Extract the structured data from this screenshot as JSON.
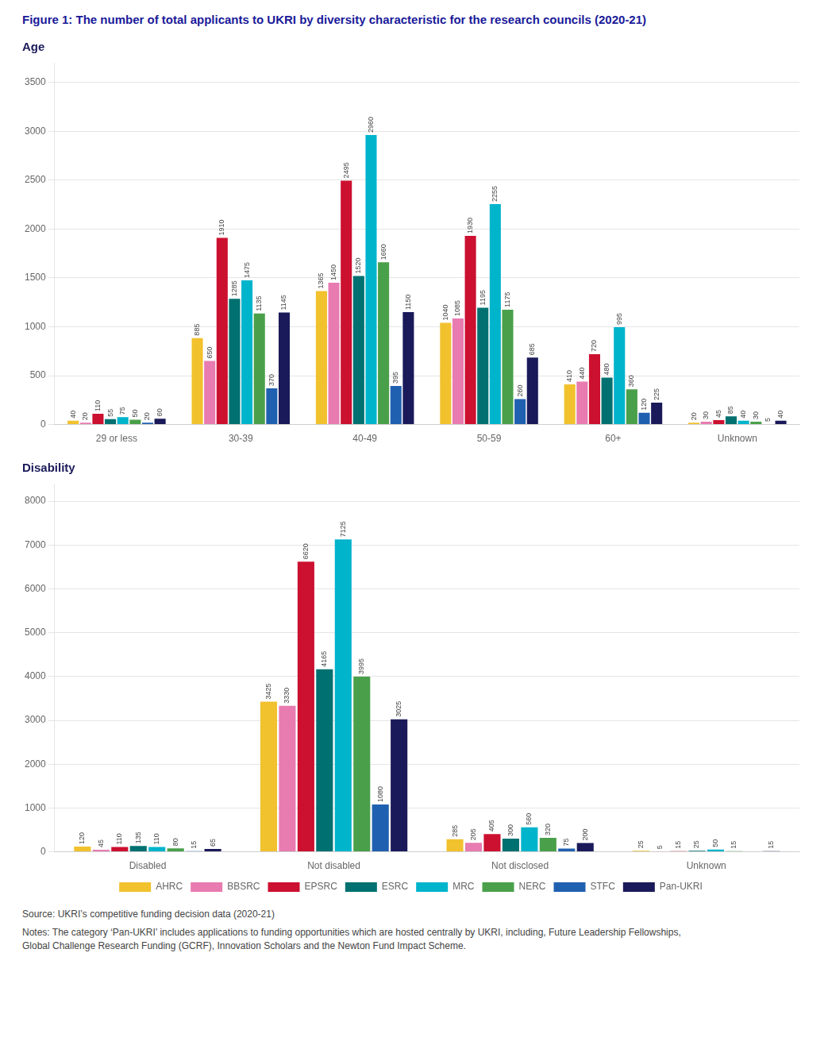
{
  "title": "Figure 1: The number of total applicants to UKRI by diversity characteristic for the research councils (2020-21)",
  "annotations": [
    "Source: UKRI’s competitive funding decision data (2020-21)",
    "Notes: The category ‘Pan-UKRI’ includes applications to funding opportunities which are hosted centrally by UKRI, including, Future Leadership Fellowships,\nGlobal Challenge Research Funding (GCRF), Innovation Scholars and the Newton Fund Impact Scheme."
  ],
  "chart_data": [
    {
      "type": "bar",
      "title": "Age",
      "categories": [
        "29 or less",
        "30-39",
        "40-49",
        "50-59",
        "60+",
        "Unknown"
      ],
      "series": [
        {
          "name": "AHRC",
          "color": "#F2C12E",
          "values": [
            40,
            885,
            1365,
            1040,
            410,
            20
          ]
        },
        {
          "name": "BBSRC",
          "color": "#E87BB0",
          "values": [
            20,
            650,
            1450,
            1085,
            440,
            30
          ]
        },
        {
          "name": "EPSRC",
          "color": "#CC1030",
          "values": [
            110,
            1910,
            2495,
            1930,
            720,
            45
          ]
        },
        {
          "name": "ESRC",
          "color": "#007070",
          "values": [
            55,
            1285,
            1520,
            1195,
            480,
            85
          ]
        },
        {
          "name": "MRC",
          "color": "#00B4CC",
          "values": [
            75,
            1475,
            2960,
            2255,
            995,
            40
          ]
        },
        {
          "name": "NERC",
          "color": "#4AA04A",
          "values": [
            50,
            1135,
            1660,
            1175,
            360,
            30
          ]
        },
        {
          "name": "STFC",
          "color": "#2060B0",
          "values": [
            20,
            370,
            395,
            260,
            120,
            5
          ]
        },
        {
          "name": "Pan-UKRI",
          "color": "#1A1A5A",
          "values": [
            60,
            1145,
            1150,
            685,
            225,
            40
          ]
        }
      ],
      "ylim": [
        0,
        3700
      ],
      "yticks": [
        0,
        500,
        1000,
        1500,
        2000,
        2500,
        3000,
        3500
      ],
      "grid": true,
      "data_labels": true
    },
    {
      "type": "bar",
      "title": "Disability",
      "categories": [
        "Disabled",
        "Not disabled",
        "Not disclosed",
        "Unknown"
      ],
      "series": [
        {
          "name": "AHRC",
          "color": "#F2C12E",
          "values": [
            120,
            3425,
            285,
            25
          ]
        },
        {
          "name": "BBSRC",
          "color": "#E87BB0",
          "values": [
            45,
            3330,
            205,
            5
          ]
        },
        {
          "name": "EPSRC",
          "color": "#CC1030",
          "values": [
            110,
            6620,
            405,
            15
          ]
        },
        {
          "name": "ESRC",
          "color": "#007070",
          "values": [
            135,
            4165,
            300,
            25
          ]
        },
        {
          "name": "MRC",
          "color": "#00B4CC",
          "values": [
            110,
            7125,
            560,
            50
          ]
        },
        {
          "name": "NERC",
          "color": "#4AA04A",
          "values": [
            80,
            3995,
            320,
            15
          ]
        },
        {
          "name": "STFC",
          "color": "#2060B0",
          "values": [
            15,
            1080,
            75,
            0
          ],
          "value_labels": [
            "15",
            "1080",
            "75",
            null
          ]
        },
        {
          "name": "Pan-UKRI",
          "color": "#1A1A5A",
          "values": [
            65,
            3025,
            200,
            15
          ]
        }
      ],
      "ylim": [
        0,
        8400
      ],
      "yticks": [
        0,
        1000,
        2000,
        3000,
        4000,
        5000,
        6000,
        7000,
        8000
      ],
      "grid": true,
      "data_labels": true,
      "legend": "bottom"
    }
  ]
}
